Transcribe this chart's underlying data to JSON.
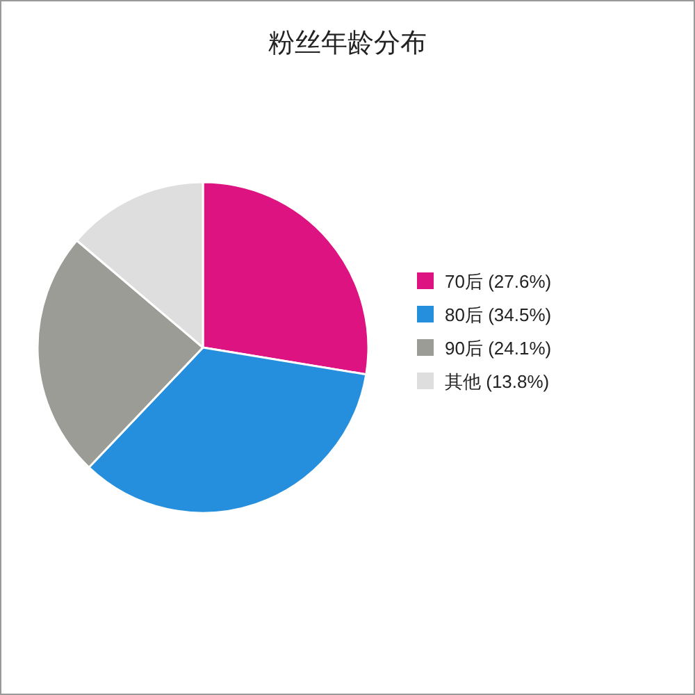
{
  "chart_data": {
    "type": "pie",
    "title": "粉丝年龄分布",
    "categories": [
      "70后",
      "80后",
      "90后",
      "其他"
    ],
    "values": [
      27.6,
      34.5,
      24.1,
      13.8
    ],
    "value_labels": [
      "(27.6%)",
      "(34.5%)",
      "(24.1%)",
      "(13.8%)"
    ],
    "colors": [
      "#dc1380",
      "#268fdd",
      "#9c9c96",
      "#dedede"
    ],
    "legend": "right"
  }
}
